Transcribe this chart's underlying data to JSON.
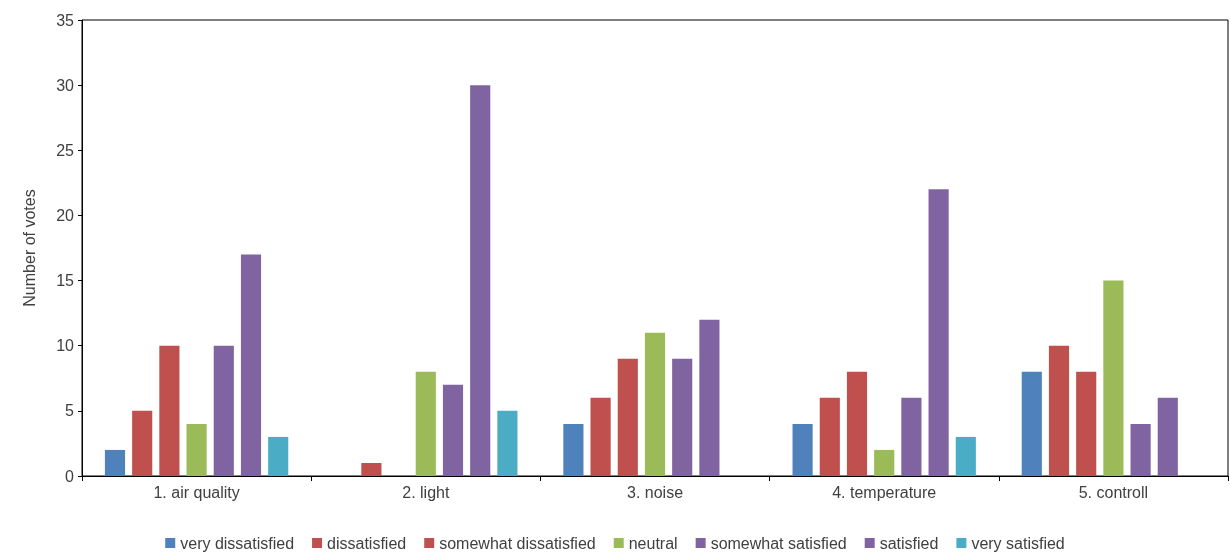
{
  "chart_data": {
    "type": "bar",
    "ylabel": "Number of votes",
    "categories": [
      "1. air quality",
      "2. light",
      "3. noise",
      "4. temperature",
      "5. controll"
    ],
    "series": [
      {
        "name": "very dissatisfied",
        "color": "#4f81bd",
        "values": [
          2,
          0,
          4,
          4,
          8
        ]
      },
      {
        "name": "dissatisfied",
        "color": "#c0504d",
        "values": [
          5,
          1,
          6,
          6,
          10
        ]
      },
      {
        "name": "somewhat dissatisfied",
        "color": "#c0504d",
        "values": [
          10,
          0,
          9,
          8,
          8
        ]
      },
      {
        "name": "neutral",
        "color": "#9bbb59",
        "values": [
          4,
          8,
          11,
          2,
          15
        ]
      },
      {
        "name": "somewhat satisfied",
        "color": "#8064a2",
        "values": [
          10,
          7,
          9,
          6,
          4
        ]
      },
      {
        "name": "satisfied",
        "color": "#8064a2",
        "values": [
          17,
          30,
          12,
          22,
          6
        ]
      },
      {
        "name": "very satisfied",
        "color": "#4bacc6",
        "values": [
          3,
          5,
          0,
          3,
          0
        ]
      }
    ],
    "ylim": [
      0,
      35
    ],
    "yticks": [
      0,
      5,
      10,
      15,
      20,
      25,
      30,
      35
    ],
    "grid": false,
    "legend": "bottom"
  }
}
